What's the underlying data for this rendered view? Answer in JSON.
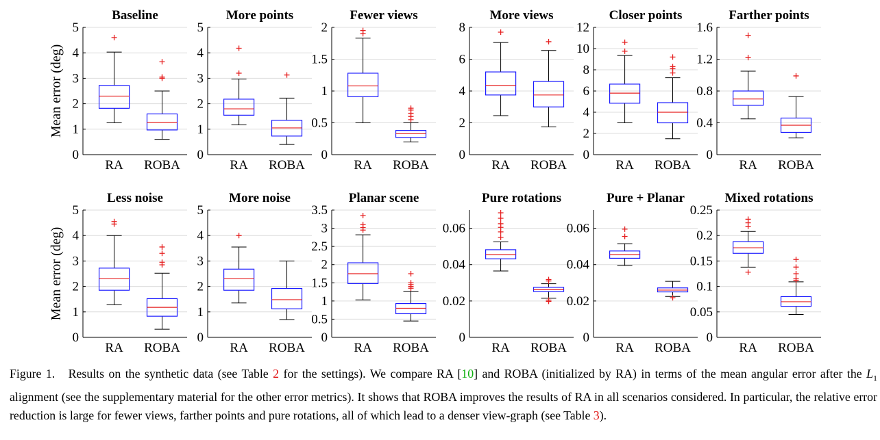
{
  "ylabel": "Mean error (deg)",
  "caption": {
    "figure_label": "Figure 1.",
    "t1": "Results on the synthetic data (see Table ",
    "ref_table_settings": "2",
    "t2": " for the settings). We compare RA [",
    "ref_citation": "10",
    "t3": "] and ROBA (initialized by RA) in terms of the mean angular error after the ",
    "math_symbol": "L",
    "math_subscript": "1",
    "t4": " alignment (see the supplementary material for the other error metrics). It shows that ROBA improves the results of RA in all scenarios considered. In particular, the relative error reduction is large for fewer views, farther points and pure rotations, all of which lead to a denser view-graph (see Table ",
    "ref_table_graph": "3",
    "t5": ")."
  },
  "colors": {
    "box": "#1a1aff",
    "median": "#e62020",
    "whisker": "#000000",
    "outlier": "#e62020",
    "grid": "#dcdcdc"
  },
  "chart_data": [
    {
      "type": "box",
      "title": "Baseline",
      "categories": [
        "RA",
        "ROBA"
      ],
      "ylim": [
        0,
        5
      ],
      "yticks": [
        "0",
        "1",
        "2",
        "3",
        "4",
        "5"
      ],
      "grid": true,
      "boxes": [
        {
          "name": "RA",
          "min": 1.25,
          "q1": 1.82,
          "median": 2.3,
          "q3": 2.72,
          "max": 4.03,
          "outliers": [
            4.6
          ]
        },
        {
          "name": "ROBA",
          "min": 0.6,
          "q1": 0.97,
          "median": 1.27,
          "q3": 1.6,
          "max": 2.5,
          "outliers": [
            3.0,
            3.05,
            3.65
          ]
        }
      ]
    },
    {
      "type": "box",
      "title": "More points",
      "categories": [
        "RA",
        "ROBA"
      ],
      "ylim": [
        0,
        5
      ],
      "yticks": [
        "0",
        "1",
        "2",
        "3",
        "4",
        "5"
      ],
      "grid": true,
      "boxes": [
        {
          "name": "RA",
          "min": 1.17,
          "q1": 1.55,
          "median": 1.8,
          "q3": 2.18,
          "max": 2.97,
          "outliers": [
            3.2,
            4.18
          ]
        },
        {
          "name": "ROBA",
          "min": 0.4,
          "q1": 0.73,
          "median": 1.05,
          "q3": 1.35,
          "max": 2.22,
          "outliers": [
            3.13
          ]
        }
      ]
    },
    {
      "type": "box",
      "title": "Fewer views",
      "categories": [
        "RA",
        "ROBA"
      ],
      "ylim": [
        0,
        2
      ],
      "yticks": [
        "0",
        "0.5",
        "1",
        "1.5",
        "2"
      ],
      "grid": true,
      "boxes": [
        {
          "name": "RA",
          "min": 0.5,
          "q1": 0.91,
          "median": 1.08,
          "q3": 1.28,
          "max": 1.83,
          "outliers": [
            1.9,
            1.95
          ]
        },
        {
          "name": "ROBA",
          "min": 0.2,
          "q1": 0.27,
          "median": 0.33,
          "q3": 0.38,
          "max": 0.5,
          "outliers": [
            0.55,
            0.6,
            0.65,
            0.7,
            0.73
          ]
        }
      ]
    },
    {
      "type": "box",
      "title": "More views",
      "categories": [
        "RA",
        "ROBA"
      ],
      "ylim": [
        0,
        8
      ],
      "yticks": [
        "0",
        "2",
        "4",
        "6",
        "8"
      ],
      "grid": true,
      "boxes": [
        {
          "name": "RA",
          "min": 2.45,
          "q1": 3.75,
          "median": 4.35,
          "q3": 5.2,
          "max": 7.05,
          "outliers": [
            7.7
          ]
        },
        {
          "name": "ROBA",
          "min": 1.75,
          "q1": 3.0,
          "median": 3.75,
          "q3": 4.6,
          "max": 6.55,
          "outliers": [
            7.1
          ]
        }
      ]
    },
    {
      "type": "box",
      "title": "Closer points",
      "categories": [
        "RA",
        "ROBA"
      ],
      "ylim": [
        0,
        12
      ],
      "yticks": [
        "0",
        "2",
        "4",
        "6",
        "8",
        "10",
        "12"
      ],
      "grid": true,
      "boxes": [
        {
          "name": "RA",
          "min": 3.0,
          "q1": 4.85,
          "median": 5.8,
          "q3": 6.65,
          "max": 9.35,
          "outliers": [
            9.75,
            10.6
          ]
        },
        {
          "name": "ROBA",
          "min": 1.5,
          "q1": 3.0,
          "median": 4.0,
          "q3": 4.9,
          "max": 7.25,
          "outliers": [
            7.7,
            8.1,
            8.3,
            9.2
          ]
        }
      ]
    },
    {
      "type": "box",
      "title": "Farther points",
      "categories": [
        "RA",
        "ROBA"
      ],
      "ylim": [
        0,
        1.6
      ],
      "yticks": [
        "0",
        "0.4",
        "0.8",
        "1.2",
        "1.6"
      ],
      "grid": true,
      "boxes": [
        {
          "name": "RA",
          "min": 0.45,
          "q1": 0.62,
          "median": 0.7,
          "q3": 0.8,
          "max": 1.05,
          "outliers": [
            1.22,
            1.5
          ]
        },
        {
          "name": "ROBA",
          "min": 0.21,
          "q1": 0.28,
          "median": 0.37,
          "q3": 0.46,
          "max": 0.73,
          "outliers": [
            0.99
          ]
        }
      ]
    },
    {
      "type": "box",
      "title": "Less noise",
      "categories": [
        "RA",
        "ROBA"
      ],
      "ylim": [
        0,
        5
      ],
      "yticks": [
        "0",
        "1",
        "2",
        "3",
        "4",
        "5"
      ],
      "grid": true,
      "boxes": [
        {
          "name": "RA",
          "min": 1.28,
          "q1": 1.85,
          "median": 2.3,
          "q3": 2.72,
          "max": 4.0,
          "outliers": [
            4.45,
            4.55
          ]
        },
        {
          "name": "ROBA",
          "min": 0.32,
          "q1": 0.83,
          "median": 1.18,
          "q3": 1.52,
          "max": 2.52,
          "outliers": [
            2.85,
            2.95,
            3.3,
            3.55
          ]
        }
      ]
    },
    {
      "type": "box",
      "title": "More noise",
      "categories": [
        "RA",
        "ROBA"
      ],
      "ylim": [
        0,
        5
      ],
      "yticks": [
        "0",
        "1",
        "2",
        "3",
        "4",
        "5"
      ],
      "grid": true,
      "boxes": [
        {
          "name": "RA",
          "min": 1.35,
          "q1": 1.85,
          "median": 2.3,
          "q3": 2.68,
          "max": 3.55,
          "outliers": [
            4.0
          ]
        },
        {
          "name": "ROBA",
          "min": 0.7,
          "q1": 1.12,
          "median": 1.48,
          "q3": 1.92,
          "max": 3.0,
          "outliers": []
        }
      ]
    },
    {
      "type": "box",
      "title": "Planar scene",
      "categories": [
        "RA",
        "ROBA"
      ],
      "ylim": [
        0,
        3.5
      ],
      "yticks": [
        "0",
        "0.5",
        "1",
        "1.5",
        "2",
        "2.5",
        "3",
        "3.5"
      ],
      "grid": true,
      "boxes": [
        {
          "name": "RA",
          "min": 1.03,
          "q1": 1.48,
          "median": 1.75,
          "q3": 2.05,
          "max": 2.82,
          "outliers": [
            2.95,
            3.02,
            3.1,
            3.35
          ]
        },
        {
          "name": "ROBA",
          "min": 0.45,
          "q1": 0.65,
          "median": 0.8,
          "q3": 0.93,
          "max": 1.27,
          "outliers": [
            1.35,
            1.4,
            1.45,
            1.5,
            1.75
          ]
        }
      ]
    },
    {
      "type": "box",
      "title": "Pure rotations",
      "categories": [
        "RA",
        "ROBA"
      ],
      "ylim": [
        0,
        0.07
      ],
      "yticks": [
        "0",
        "0.02",
        "0.04",
        "0.06"
      ],
      "grid": true,
      "boxes": [
        {
          "name": "RA",
          "min": 0.0365,
          "q1": 0.0432,
          "median": 0.0455,
          "q3": 0.0482,
          "max": 0.0525,
          "outliers": [
            0.055,
            0.058,
            0.0605,
            0.0625,
            0.0655,
            0.0685
          ]
        },
        {
          "name": "ROBA",
          "min": 0.0215,
          "q1": 0.0252,
          "median": 0.0262,
          "q3": 0.0275,
          "max": 0.0295,
          "outliers": [
            0.0198,
            0.0205,
            0.031,
            0.0318
          ]
        }
      ]
    },
    {
      "type": "box",
      "title": "Pure + Planar",
      "categories": [
        "RA",
        "ROBA"
      ],
      "ylim": [
        0,
        0.07
      ],
      "yticks": [
        "0",
        "0.02",
        "0.04",
        "0.06"
      ],
      "grid": true,
      "boxes": [
        {
          "name": "RA",
          "min": 0.0395,
          "q1": 0.0435,
          "median": 0.0455,
          "q3": 0.0475,
          "max": 0.0515,
          "outliers": [
            0.0555,
            0.0595
          ]
        },
        {
          "name": "ROBA",
          "min": 0.0225,
          "q1": 0.025,
          "median": 0.026,
          "q3": 0.0272,
          "max": 0.0308,
          "outliers": [
            0.0218
          ]
        }
      ]
    },
    {
      "type": "box",
      "title": "Mixed rotations",
      "categories": [
        "RA",
        "ROBA"
      ],
      "ylim": [
        0,
        0.25
      ],
      "yticks": [
        "0",
        "0.05",
        "0.1",
        "0.15",
        "0.2",
        "0.25"
      ],
      "grid": true,
      "boxes": [
        {
          "name": "RA",
          "min": 0.138,
          "q1": 0.165,
          "median": 0.176,
          "q3": 0.188,
          "max": 0.208,
          "outliers": [
            0.128,
            0.218,
            0.225,
            0.232
          ]
        },
        {
          "name": "ROBA",
          "min": 0.045,
          "q1": 0.061,
          "median": 0.07,
          "q3": 0.08,
          "max": 0.109,
          "outliers": [
            0.112,
            0.115,
            0.125,
            0.138,
            0.153
          ]
        }
      ]
    }
  ]
}
